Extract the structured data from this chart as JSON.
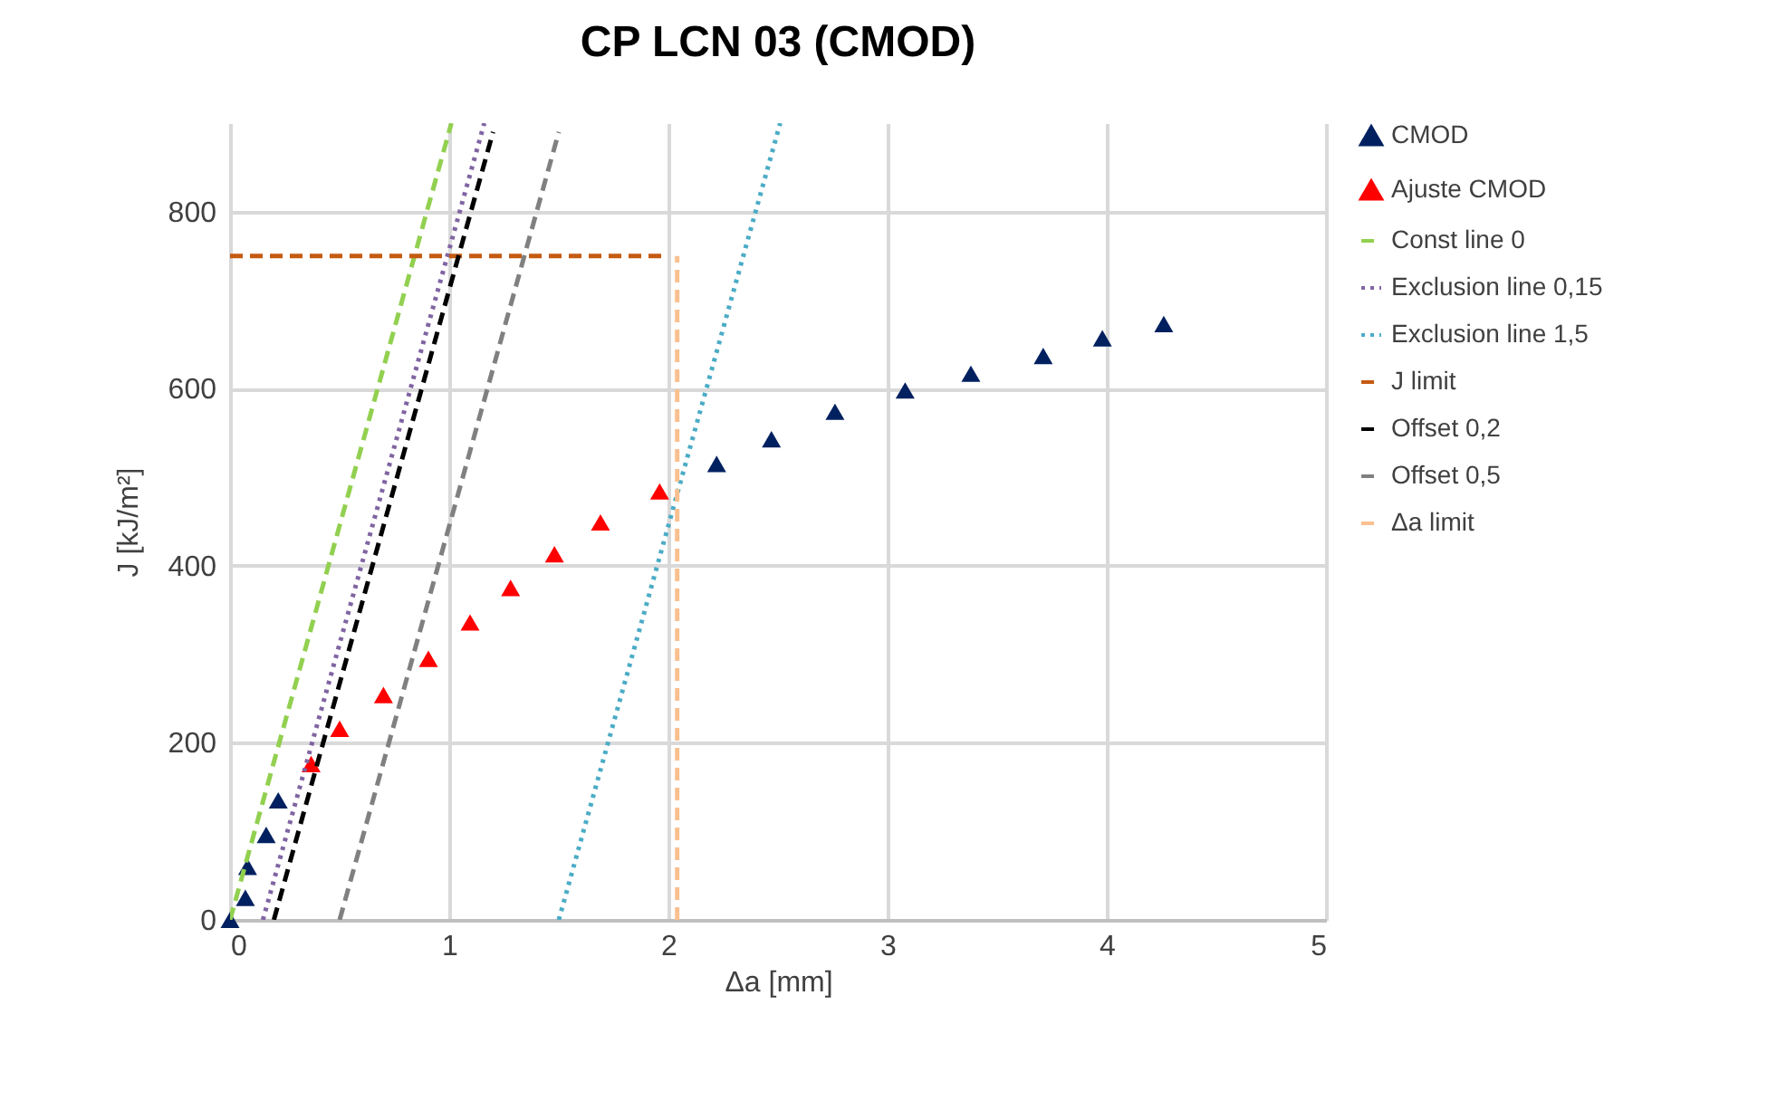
{
  "chart_data": {
    "type": "scatter",
    "title": "CP LCN 03 (CMOD)",
    "xlabel": "Δa [mm]",
    "ylabel": "J [kJ/m²]",
    "xlim": [
      0,
      5
    ],
    "xticks": [
      0,
      1,
      2,
      3,
      4,
      5
    ],
    "ylim": [
      0,
      900
    ],
    "yticks": [
      0,
      200,
      400,
      600,
      800
    ],
    "grid": true,
    "legend": "right",
    "series": [
      {
        "name": "CMOD",
        "marker": "triangle",
        "color": "#002060",
        "x": [
          0,
          0.07,
          0.08,
          0.165,
          0.22,
          2.22,
          2.47,
          2.76,
          3.08,
          3.38,
          3.71,
          3.98,
          4.26
        ],
        "values": [
          0,
          25,
          60,
          96,
          135,
          515,
          543,
          574,
          598,
          617,
          637,
          657,
          673
        ]
      },
      {
        "name": "Ajuste CMOD",
        "marker": "triangle",
        "color": "#ff0000",
        "x": [
          0.37,
          0.5,
          0.7,
          0.905,
          1.095,
          1.28,
          1.48,
          1.69,
          1.96
        ],
        "values": [
          176,
          216,
          254,
          295,
          336,
          375,
          413,
          449,
          484
        ]
      },
      {
        "name": "Const line 0",
        "type": "line",
        "marker": "none",
        "line_style": "dashed",
        "color": "#92d050",
        "x": [
          0,
          1.01
        ],
        "values": [
          0,
          900
        ]
      },
      {
        "name": "Exclusion line 0,15",
        "type": "line",
        "marker": "none",
        "line_style": "dotted",
        "color": "#8064a2",
        "x": [
          0.15,
          1.16
        ],
        "values": [
          0,
          900
        ]
      },
      {
        "name": "Exclusion line 1,5",
        "type": "line",
        "marker": "none",
        "line_style": "dotted",
        "color": "#4bacc6",
        "x": [
          1.5,
          2.51
        ],
        "values": [
          0,
          900
        ]
      },
      {
        "name": "J limit",
        "type": "line",
        "marker": "none",
        "line_style": "dashed",
        "color": "#c55a11",
        "x": [
          0,
          2.0
        ],
        "values": [
          750,
          750
        ]
      },
      {
        "name": "Offset 0,2",
        "type": "line",
        "marker": "none",
        "line_style": "dashed",
        "color": "#000000",
        "x": [
          0.2,
          1.2
        ],
        "values": [
          0,
          890
        ]
      },
      {
        "name": "Offset 0,5",
        "type": "line",
        "marker": "none",
        "line_style": "dashed",
        "color": "#808080",
        "x": [
          0.5,
          1.5
        ],
        "values": [
          0,
          890
        ]
      },
      {
        "name": "Δa limit",
        "type": "line",
        "marker": "none",
        "line_style": "dashed",
        "color": "#fac090",
        "x": [
          2.04,
          2.04
        ],
        "values": [
          0,
          750
        ]
      }
    ]
  }
}
